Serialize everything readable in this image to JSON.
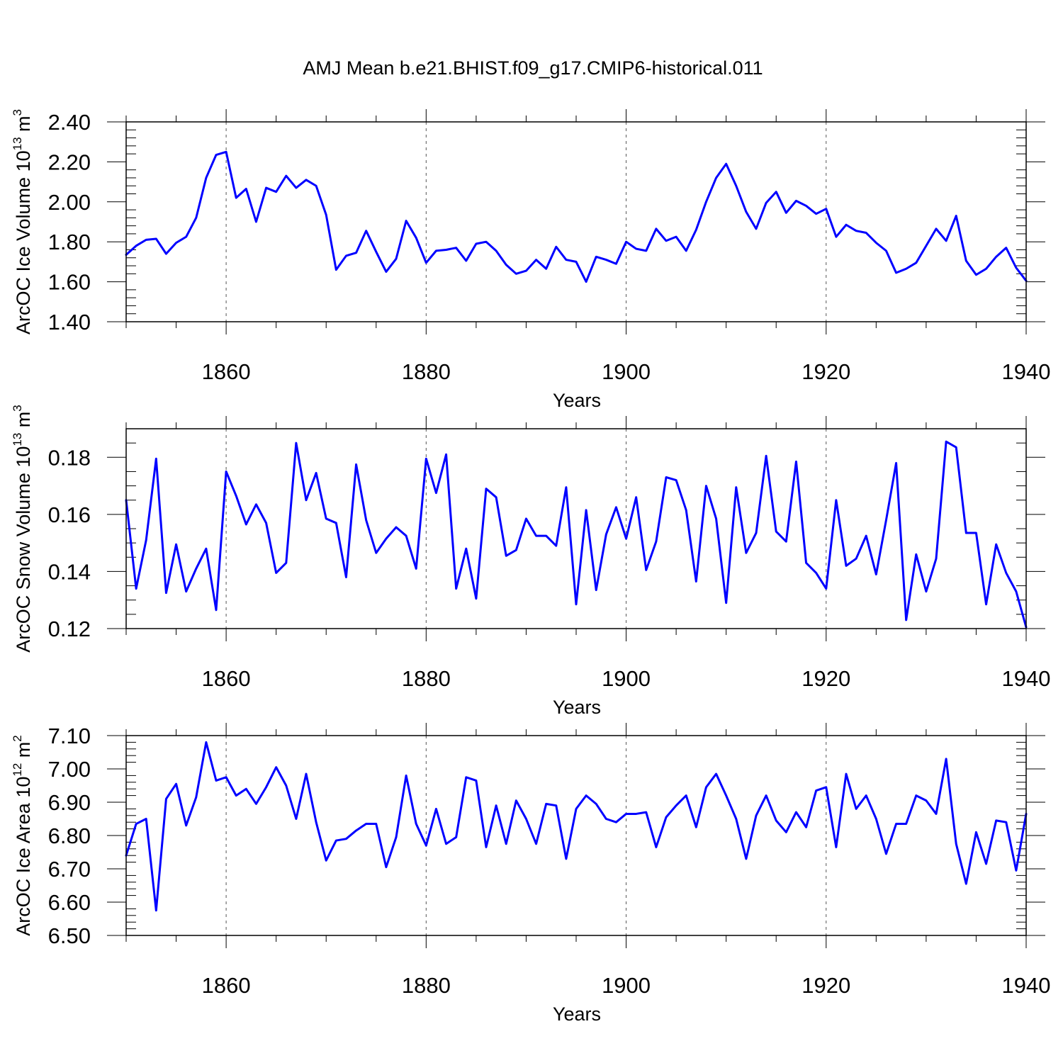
{
  "figure": {
    "title": "AMJ Mean b.e21.BHIST.f09_g17.CMIP6-historical.011",
    "line_color": "#0000ff",
    "axis_color": "#000000",
    "grid_color": "#555555"
  },
  "chart_data": [
    {
      "type": "line",
      "name": "ice-volume",
      "title": "",
      "xlabel": "Years",
      "ylabel_prefix": "ArcOC Ice Volume 10",
      "ylabel_exp": "13",
      "ylabel_unit": " m",
      "ylabel_unit_exp": "3",
      "xlim": [
        1850,
        1940
      ],
      "ylim": [
        1.4,
        2.4
      ],
      "xticks": [
        1860,
        1880,
        1900,
        1920,
        1940
      ],
      "xtick_labels": [
        "1860",
        "1880",
        "1900",
        "1920",
        "1940"
      ],
      "yticks": [
        1.4,
        1.6,
        1.8,
        2.0,
        2.2,
        2.4
      ],
      "ytick_labels": [
        "1.40",
        "1.60",
        "1.80",
        "2.00",
        "2.20",
        "2.40"
      ],
      "y_minor_step": 0.04,
      "grid": "vertical dashed at major x ticks",
      "x_start": 1850,
      "values": [
        1.735,
        1.78,
        1.81,
        1.815,
        1.74,
        1.795,
        1.825,
        1.92,
        2.12,
        2.235,
        2.25,
        2.02,
        2.065,
        1.9,
        2.07,
        2.05,
        2.13,
        2.07,
        2.11,
        2.08,
        1.935,
        1.66,
        1.73,
        1.745,
        1.855,
        1.75,
        1.65,
        1.715,
        1.905,
        1.82,
        1.695,
        1.755,
        1.76,
        1.77,
        1.705,
        1.79,
        1.8,
        1.755,
        1.685,
        1.64,
        1.655,
        1.71,
        1.665,
        1.775,
        1.71,
        1.7,
        1.6,
        1.725,
        1.71,
        1.69,
        1.8,
        1.765,
        1.755,
        1.865,
        1.805,
        1.825,
        1.755,
        1.86,
        2.0,
        2.12,
        2.19,
        2.08,
        1.95,
        1.865,
        1.995,
        2.05,
        1.945,
        2.005,
        1.98,
        1.94,
        1.965,
        1.825,
        1.885,
        1.855,
        1.845,
        1.795,
        1.755,
        1.645,
        1.665,
        1.695,
        1.78,
        1.865,
        1.805,
        1.93,
        1.705,
        1.635,
        1.665,
        1.725,
        1.77,
        1.67,
        1.605
      ]
    },
    {
      "type": "line",
      "name": "snow-volume",
      "title": "",
      "xlabel": "Years",
      "ylabel_prefix": "ArcOC Snow Volume 10",
      "ylabel_exp": "13",
      "ylabel_unit": " m",
      "ylabel_unit_exp": "3",
      "xlim": [
        1850,
        1940
      ],
      "ylim": [
        0.12,
        0.19
      ],
      "xticks": [
        1860,
        1880,
        1900,
        1920,
        1940
      ],
      "xtick_labels": [
        "1860",
        "1880",
        "1900",
        "1920",
        "1940"
      ],
      "yticks": [
        0.12,
        0.14,
        0.16,
        0.18
      ],
      "ytick_labels": [
        "0.12",
        "0.14",
        "0.16",
        "0.18"
      ],
      "y_minor_step": 0.005,
      "grid": "vertical dashed at major x ticks",
      "x_start": 1850,
      "values": [
        0.165,
        0.134,
        0.151,
        0.1795,
        0.1325,
        0.1495,
        0.133,
        0.141,
        0.148,
        0.1265,
        0.175,
        0.1665,
        0.1565,
        0.1635,
        0.157,
        0.1395,
        0.143,
        0.185,
        0.165,
        0.1745,
        0.1585,
        0.157,
        0.138,
        0.1775,
        0.158,
        0.1465,
        0.1515,
        0.1555,
        0.1525,
        0.141,
        0.1795,
        0.1675,
        0.181,
        0.134,
        0.148,
        0.1305,
        0.169,
        0.166,
        0.1455,
        0.1475,
        0.1585,
        0.1525,
        0.1525,
        0.149,
        0.1695,
        0.1285,
        0.1615,
        0.1335,
        0.153,
        0.1625,
        0.1515,
        0.166,
        0.1405,
        0.1505,
        0.173,
        0.172,
        0.1615,
        0.1365,
        0.17,
        0.1585,
        0.129,
        0.1695,
        0.1465,
        0.1535,
        0.1805,
        0.154,
        0.1505,
        0.1785,
        0.143,
        0.1395,
        0.134,
        0.165,
        0.142,
        0.1445,
        0.1525,
        0.139,
        0.158,
        0.178,
        0.123,
        0.146,
        0.133,
        0.1445,
        0.1855,
        0.1835,
        0.1535,
        0.1535,
        0.1285,
        0.1495,
        0.1395,
        0.133,
        0.1205
      ]
    },
    {
      "type": "line",
      "name": "ice-area",
      "title": "",
      "xlabel": "Years",
      "ylabel_prefix": "ArcOC Ice Area 10",
      "ylabel_exp": "12",
      "ylabel_unit": " m",
      "ylabel_unit_exp": "2",
      "xlim": [
        1850,
        1940
      ],
      "ylim": [
        6.5,
        7.1
      ],
      "xticks": [
        1860,
        1880,
        1900,
        1920,
        1940
      ],
      "xtick_labels": [
        "1860",
        "1880",
        "1900",
        "1920",
        "1940"
      ],
      "yticks": [
        6.5,
        6.6,
        6.7,
        6.8,
        6.9,
        7.0,
        7.1
      ],
      "ytick_labels": [
        "6.50",
        "6.60",
        "6.70",
        "6.80",
        "6.90",
        "7.00",
        "7.10"
      ],
      "y_minor_step": 0.02,
      "grid": "vertical dashed at major x ticks",
      "x_start": 1850,
      "values": [
        6.74,
        6.835,
        6.85,
        6.575,
        6.91,
        6.955,
        6.83,
        6.915,
        7.08,
        6.965,
        6.975,
        6.92,
        6.94,
        6.895,
        6.945,
        7.005,
        6.95,
        6.85,
        6.985,
        6.84,
        6.725,
        6.785,
        6.79,
        6.815,
        6.835,
        6.835,
        6.705,
        6.795,
        6.98,
        6.835,
        6.77,
        6.88,
        6.775,
        6.795,
        6.975,
        6.965,
        6.765,
        6.89,
        6.775,
        6.905,
        6.85,
        6.775,
        6.895,
        6.89,
        6.73,
        6.88,
        6.92,
        6.895,
        6.85,
        6.84,
        6.865,
        6.865,
        6.87,
        6.765,
        6.855,
        6.89,
        6.92,
        6.825,
        6.945,
        6.985,
        6.92,
        6.85,
        6.73,
        6.86,
        6.92,
        6.845,
        6.81,
        6.87,
        6.825,
        6.935,
        6.945,
        6.765,
        6.985,
        6.88,
        6.92,
        6.85,
        6.745,
        6.835,
        6.835,
        6.92,
        6.905,
        6.865,
        7.03,
        6.775,
        6.655,
        6.81,
        6.715,
        6.845,
        6.84,
        6.695,
        6.865
      ]
    }
  ]
}
